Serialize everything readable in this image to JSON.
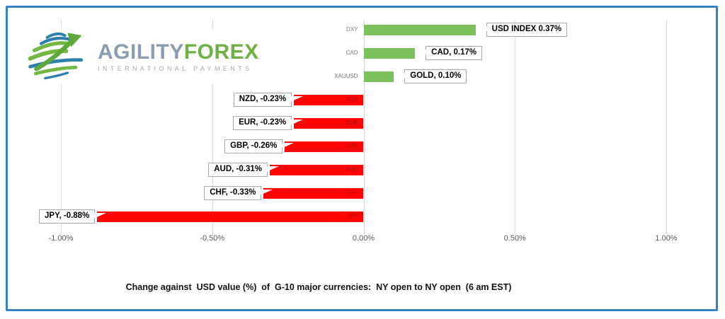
{
  "logo": {
    "brand_primary": "AGILITY",
    "brand_secondary": "FOREX",
    "tagline": "INTERNATIONAL PAYMENTS"
  },
  "chart_data": {
    "type": "bar",
    "orientation": "horizontal",
    "categories": [
      "DXY",
      "CAD",
      "XAUUSD",
      "NZD",
      "EUR",
      "GBP",
      "AUD",
      "CHF",
      "JPY"
    ],
    "values": [
      0.37,
      0.17,
      0.1,
      -0.23,
      -0.23,
      -0.26,
      -0.31,
      -0.33,
      -0.88
    ],
    "data_labels": [
      "USD INDEX 0.37%",
      "CAD, 0.17%",
      "GOLD, 0.10%",
      "NZD, -0.23%",
      "EUR, -0.23%",
      "GBP, -0.26%",
      "AUD, -0.31%",
      "CHF, -0.33%",
      "JPY, -0.88%"
    ],
    "x_ticks": [
      {
        "label": "-1.00%",
        "value": -1.0
      },
      {
        "label": "-0.50%",
        "value": -0.5
      },
      {
        "label": "0.00%",
        "value": 0.0
      },
      {
        "label": "0.50%",
        "value": 0.5
      },
      {
        "label": "1.00%",
        "value": 1.0
      }
    ],
    "xlim": [
      -1.0,
      1.0
    ],
    "grid": true,
    "legend": false,
    "caption": "Change against  USD value (%)  of  G-10 major currencies:  NY open to NY open  (6 am EST)",
    "colors": {
      "positive": "#7cc05c",
      "negative": "#fe0505",
      "gridline": "#d9d9d9",
      "axis_text": "#595959",
      "category_positive_text": "#767676",
      "category_negative_text": "#a01010",
      "frame_border": "#3181c4"
    }
  }
}
